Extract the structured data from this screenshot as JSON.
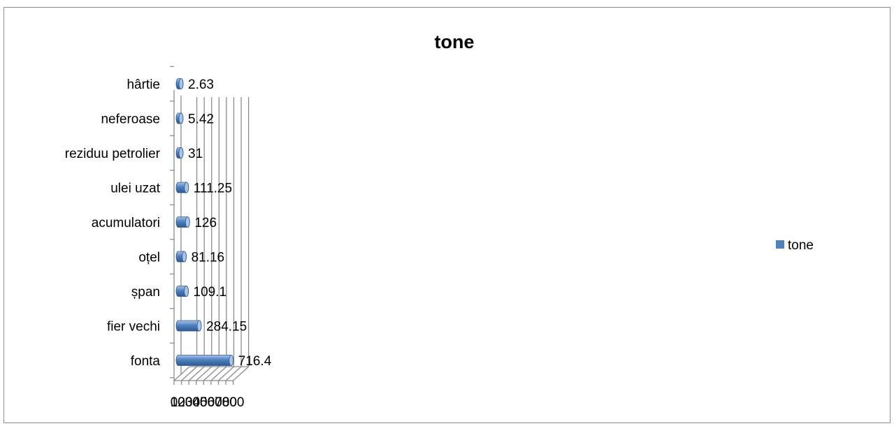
{
  "chart_data": {
    "type": "bar",
    "orientation": "horizontal",
    "title": "tone",
    "categories": [
      "fonta",
      "fier vechi",
      "șpan",
      "oțel",
      "acumulatori",
      "ulei uzat",
      "reziduu petrolier",
      "neferoase",
      "hârtie"
    ],
    "series": [
      {
        "name": "tone",
        "values": [
          716.4,
          284.15,
          109.1,
          81.16,
          126,
          111.25,
          31,
          5.42,
          2.63
        ]
      }
    ],
    "data_labels": [
      "716.4",
      "284.15",
      "109.1",
      "81.16",
      "126",
      "111.25",
      "31",
      "5.42",
      "2.63"
    ],
    "xlim": [
      0,
      800
    ],
    "xticks": [
      0,
      100,
      200,
      300,
      400,
      500,
      600,
      700,
      800
    ],
    "grid": true,
    "legend_position": "right",
    "colors": {
      "bar": "#4f81bd",
      "bar_light": "#a9c4e8",
      "bar_dark": "#2f5a8f",
      "grid": "#8c8c8c"
    }
  }
}
